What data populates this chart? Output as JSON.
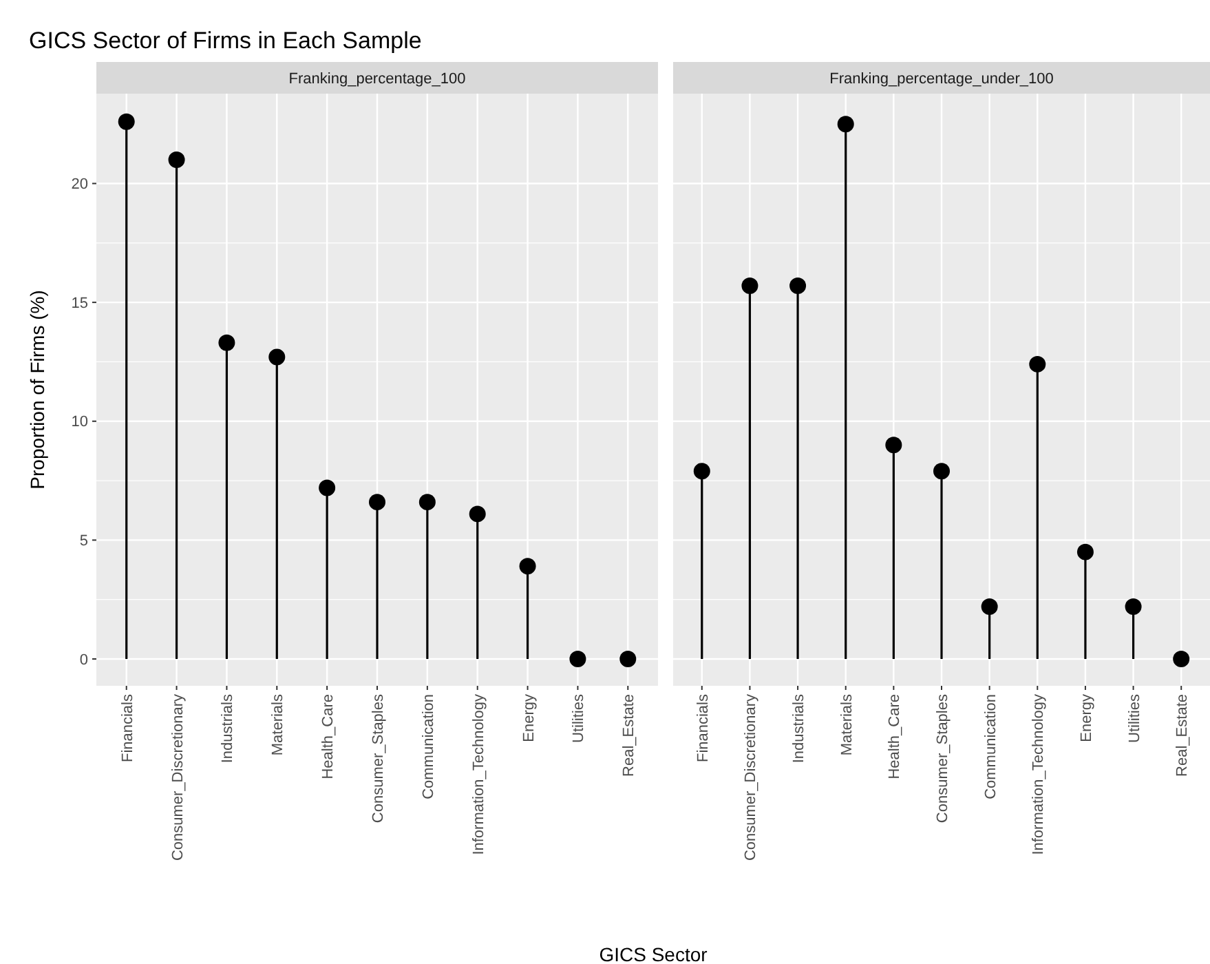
{
  "chart_data": [
    {
      "type": "lollipop",
      "title": "GICS Sector of Firms in Each Sample",
      "subtitle": "Franking_percentage_100",
      "xlabel": "GICS Sector",
      "ylabel": "Proportion of Firms (%)",
      "categories": [
        "Financials",
        "Consumer_Discretionary",
        "Industrials",
        "Materials",
        "Health_Care",
        "Consumer_Staples",
        "Communication",
        "Information_Technology",
        "Energy",
        "Utilities",
        "Real_Estate"
      ],
      "series": [
        {
          "color": "#000000",
          "values": [
            22.6,
            21.0,
            13.3,
            12.7,
            7.2,
            6.6,
            6.6,
            6.1,
            3.9,
            0,
            0
          ]
        }
      ],
      "ylim": [
        -1.13,
        23.78
      ],
      "yticks": [
        0,
        5,
        10,
        15,
        20
      ],
      "grid": true,
      "marker": "circle"
    },
    {
      "type": "lollipop",
      "subtitle": "Franking_percentage_under_100",
      "categories": [
        "Financials",
        "Consumer_Discretionary",
        "Industrials",
        "Materials",
        "Health_Care",
        "Consumer_Staples",
        "Communication",
        "Information_Technology",
        "Energy",
        "Utilities",
        "Real_Estate"
      ],
      "series": [
        {
          "color": "#000000",
          "values": [
            7.9,
            15.7,
            15.7,
            22.5,
            9.0,
            7.9,
            2.2,
            12.4,
            4.5,
            2.2,
            0
          ]
        }
      ],
      "ylim": [
        -1.13,
        23.78
      ],
      "yticks": [
        0,
        5,
        10,
        15,
        20
      ],
      "grid": true,
      "marker": "circle",
      "tick_labels": "x"
    }
  ]
}
